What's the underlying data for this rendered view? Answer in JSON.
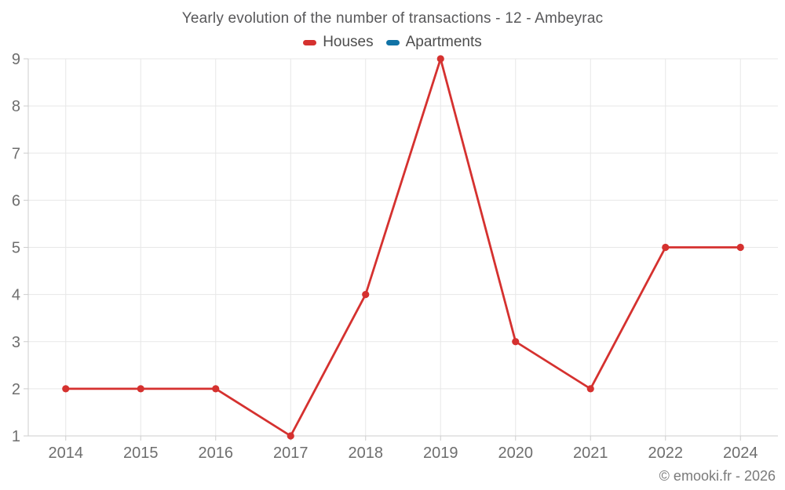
{
  "footer": {
    "credit": "© emooki.fr - 2026"
  },
  "colors": {
    "background": "#ffffff",
    "grid": "#e7e7e7",
    "axis": "#cdcdcd",
    "tick_label": "#6e6e6e",
    "title": "#58585a",
    "legend_text": "#4d4d4d",
    "credit_text": "#7a7a7a",
    "houses": "#d5312f",
    "apartments": "#1173a6"
  },
  "chart_data": {
    "type": "line",
    "title": "Yearly evolution of the number of transactions - 12 - Ambeyrac",
    "categories": [
      "2014",
      "2015",
      "2016",
      "2017",
      "2018",
      "2019",
      "2020",
      "2021",
      "2022",
      "2024"
    ],
    "series": [
      {
        "name": "Houses",
        "color": "#d5312f",
        "values": [
          2,
          2,
          2,
          1,
          4,
          9,
          3,
          2,
          5,
          5
        ]
      },
      {
        "name": "Apartments",
        "color": "#1173a6",
        "values": []
      }
    ],
    "xlabel": "",
    "ylabel": "",
    "ylim": [
      1,
      9
    ],
    "yticks": [
      1,
      2,
      3,
      4,
      5,
      6,
      7,
      8,
      9
    ],
    "grid": true,
    "legend_position": "top"
  }
}
